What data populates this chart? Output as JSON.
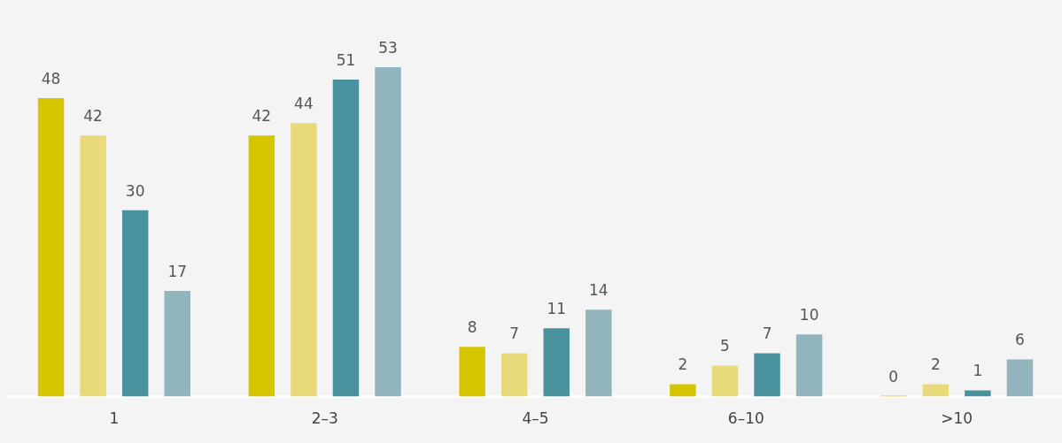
{
  "chart_data": {
    "type": "bar",
    "categories": [
      "1",
      "2–3",
      "4–5",
      "6–10",
      ">10"
    ],
    "series": [
      {
        "color": "#d6c600",
        "values": [
          48,
          42,
          8,
          2,
          0
        ]
      },
      {
        "color": "#e8da7a",
        "values": [
          42,
          44,
          7,
          5,
          2
        ]
      },
      {
        "color": "#4a939e",
        "values": [
          30,
          51,
          11,
          7,
          1
        ]
      },
      {
        "color": "#92b5bd",
        "values": [
          17,
          53,
          14,
          10,
          6
        ]
      }
    ],
    "data_labels": true,
    "grid": false,
    "legend": false
  }
}
